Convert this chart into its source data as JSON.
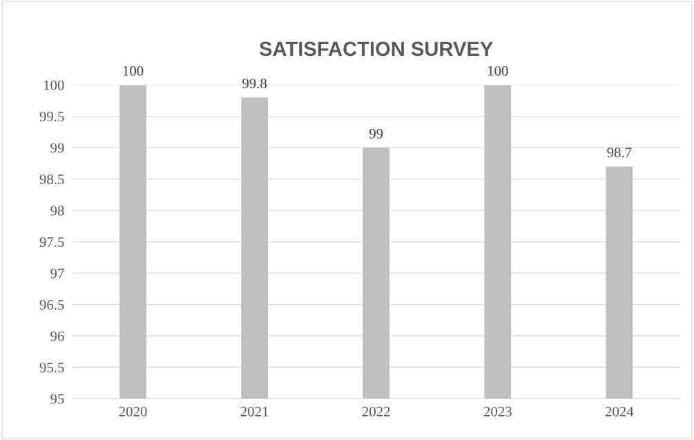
{
  "chart_data": {
    "type": "bar",
    "title": "SATISFACTION SURVEY",
    "categories": [
      "2020",
      "2021",
      "2022",
      "2023",
      "2024"
    ],
    "values": [
      100,
      99.8,
      99,
      100,
      98.7
    ],
    "color": "#bfbfbf",
    "ylim": [
      95,
      100
    ],
    "yticks": [
      95,
      95.5,
      96,
      96.5,
      97,
      97.5,
      98,
      98.5,
      99,
      99.5,
      100
    ],
    "grid": "y",
    "data_labels": true,
    "legend": false
  }
}
